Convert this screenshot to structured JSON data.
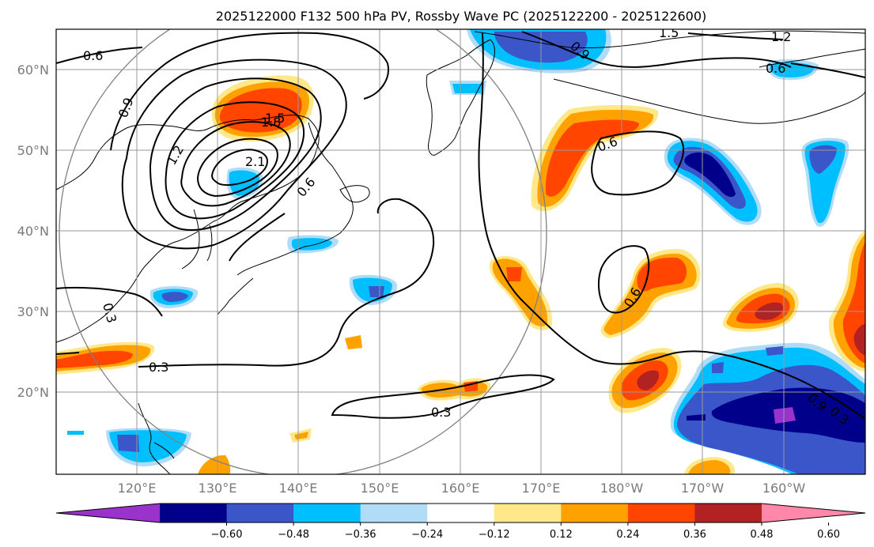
{
  "title": "2025122000 F132 500 hPa PV, Rossby Wave PC (2025122200 - 2025122600)",
  "lon_ticks": [
    "120°E",
    "130°E",
    "140°E",
    "150°E",
    "160°E",
    "170°E",
    "180°W",
    "170°W",
    "160°W"
  ],
  "lat_ticks": [
    "60°N",
    "50°N",
    "40°N",
    "30°N",
    "20°N"
  ],
  "colorbar": {
    "ticks": [
      "−0.60",
      "−0.48",
      "−0.36",
      "−0.24",
      "−0.12",
      "0.12",
      "0.24",
      "0.36",
      "0.48",
      "0.60"
    ],
    "colors": [
      "#9933cc",
      "#00008b",
      "#3a56c8",
      "#00bfff",
      "#b0dcf8",
      "#ffffff",
      "#ffe88a",
      "#ffa200",
      "#ff4500",
      "#b22222",
      "#ff88aa"
    ]
  },
  "contour_labels": [
    "0.6",
    "0.9",
    "1.2",
    "1.5",
    "1.8",
    "2.1",
    "0.6",
    "0.9",
    "0.3",
    "0.3",
    "0.3",
    "0.6",
    "0.6",
    "1.5",
    "1.2",
    "0.6",
    "0.9",
    "0.3"
  ],
  "fill_colors": {
    "dark_red": "#b22222",
    "red": "#ff4500",
    "orange": "#ffa200",
    "yellow": "#ffe88a",
    "light_blue": "#b0dcf8",
    "blue": "#00bfff",
    "mid_blue": "#3a56c8",
    "navy": "#00008b",
    "purple": "#9933cc"
  }
}
